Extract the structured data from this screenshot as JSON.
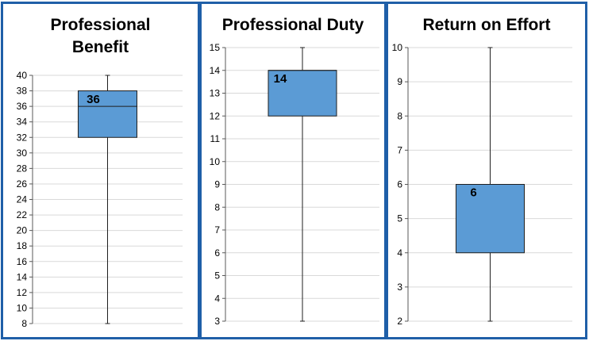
{
  "colors": {
    "panel_border": "#1f5fa8",
    "box_fill": "#5b9bd5",
    "box_stroke": "#1f1f1f",
    "whisker": "#1f1f1f",
    "grid": "#d9d9d9",
    "axis": "#595959",
    "text": "#000000"
  },
  "chart_data": [
    {
      "type": "box",
      "title": "Professional Benefit",
      "title_lines": [
        "Professional",
        "Benefit"
      ],
      "ylim": [
        8,
        40
      ],
      "y_ticks": [
        8,
        10,
        12,
        14,
        16,
        18,
        20,
        22,
        24,
        26,
        28,
        30,
        32,
        34,
        36,
        38,
        40
      ],
      "grid": true,
      "box": {
        "min": 8,
        "q1": 32,
        "median": 36,
        "q3": 38,
        "max": 40
      },
      "data_label": "36"
    },
    {
      "type": "box",
      "title": "Professional Duty",
      "title_lines": [
        "Professional Duty"
      ],
      "ylim": [
        3,
        15
      ],
      "y_ticks": [
        3,
        4,
        5,
        6,
        7,
        8,
        9,
        10,
        11,
        12,
        13,
        14,
        15
      ],
      "grid": true,
      "box": {
        "min": 3,
        "q1": 12,
        "median": 14,
        "q3": 14,
        "max": 15
      },
      "data_label": "14"
    },
    {
      "type": "box",
      "title": "Return on Effort",
      "title_lines": [
        "Return on Effort"
      ],
      "ylim": [
        2,
        10
      ],
      "y_ticks": [
        2,
        3,
        4,
        5,
        6,
        7,
        8,
        9,
        10
      ],
      "grid": true,
      "box": {
        "min": 2,
        "q1": 4,
        "median": 6,
        "q3": 6,
        "max": 10
      },
      "data_label": "6"
    }
  ]
}
